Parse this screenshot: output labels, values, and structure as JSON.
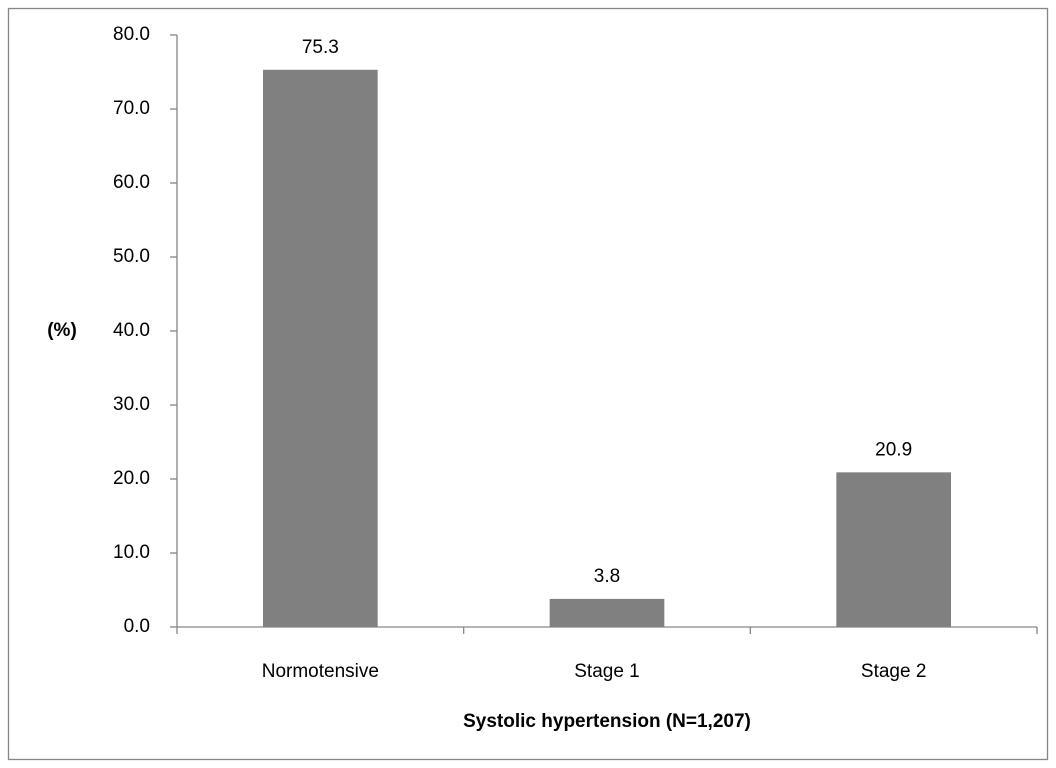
{
  "chart_data": {
    "type": "bar",
    "y_label": "(%)",
    "x_label": "Systolic hypertension (N=1,207)",
    "categories": [
      "Normotensive",
      "Stage 1",
      "Stage 2"
    ],
    "values": [
      75.3,
      3.8,
      20.9
    ],
    "color": "#808080",
    "ylim": [
      0,
      80
    ],
    "yticks": [
      {
        "value": 0,
        "label": "0.0"
      },
      {
        "value": 10,
        "label": "10.0"
      },
      {
        "value": 20,
        "label": "20.0"
      },
      {
        "value": 30,
        "label": "30.0"
      },
      {
        "value": 40,
        "label": "40.0"
      },
      {
        "value": 50,
        "label": "50.0"
      },
      {
        "value": 60,
        "label": "60.0"
      },
      {
        "value": 70,
        "label": "70.0"
      },
      {
        "value": 80,
        "label": "80.0"
      }
    ],
    "grid": false
  }
}
